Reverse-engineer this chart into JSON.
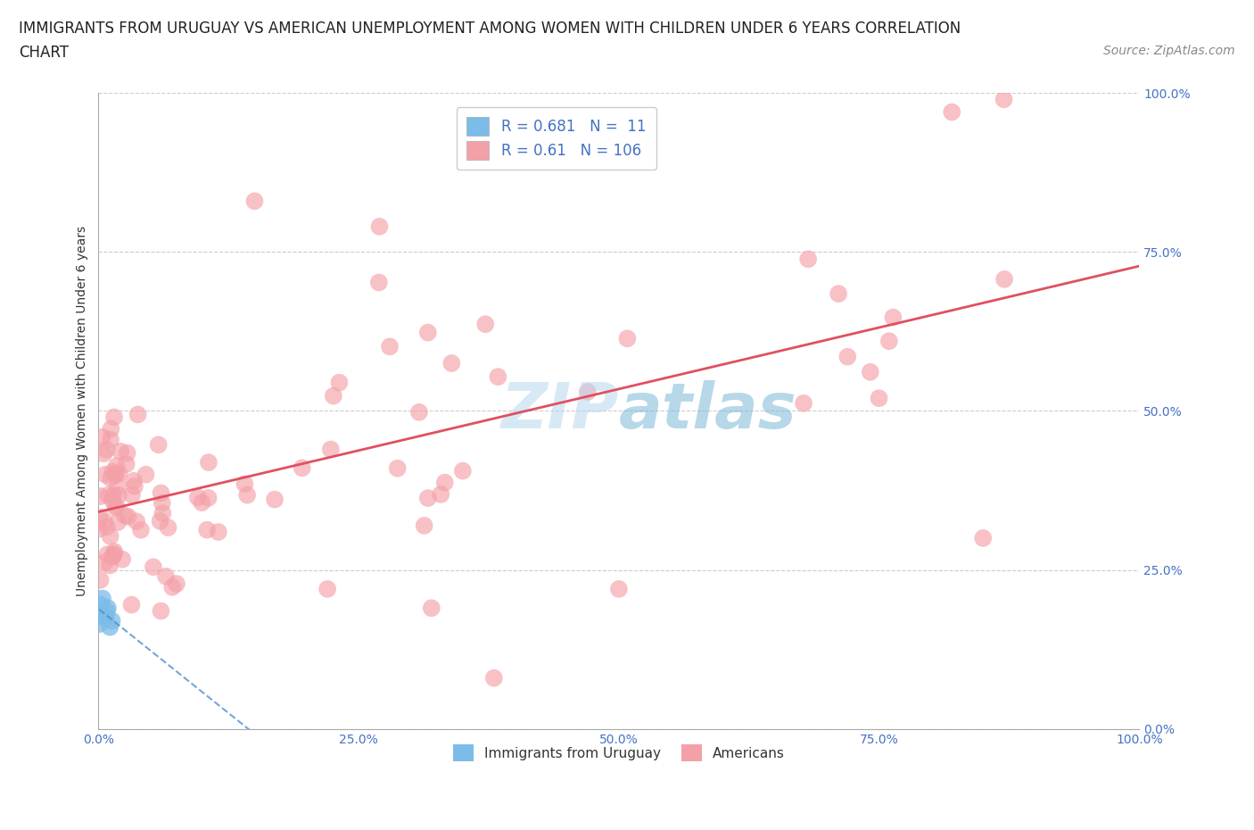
{
  "title_line1": "IMMIGRANTS FROM URUGUAY VS AMERICAN UNEMPLOYMENT AMONG WOMEN WITH CHILDREN UNDER 6 YEARS CORRELATION",
  "title_line2": "CHART",
  "source": "Source: ZipAtlas.com",
  "ylabel": "Unemployment Among Women with Children Under 6 years",
  "xlim": [
    0,
    1.0
  ],
  "ylim": [
    0,
    1.0
  ],
  "xticks": [
    0.0,
    0.25,
    0.5,
    0.75,
    1.0
  ],
  "yticks": [
    0.0,
    0.25,
    0.5,
    0.75,
    1.0
  ],
  "xtick_labels": [
    "0.0%",
    "25.0%",
    "50.0%",
    "75.0%",
    "100.0%"
  ],
  "ytick_labels": [
    "0.0%",
    "25.0%",
    "50.0%",
    "75.0%",
    "100.0%"
  ],
  "uruguay_color": "#7bbce8",
  "american_color": "#f4a0a8",
  "uruguay_R": 0.681,
  "uruguay_N": 11,
  "american_R": 0.61,
  "american_N": 106,
  "background_color": "#ffffff",
  "grid_color": "#cccccc",
  "tick_color": "#4472c4",
  "title_fontsize": 12,
  "axis_label_fontsize": 10,
  "tick_fontsize": 10,
  "legend_fontsize": 12,
  "source_fontsize": 10,
  "watermark_text": "ZIPatlas",
  "legend_label1": "Immigrants from Uruguay",
  "legend_label2": "Americans"
}
